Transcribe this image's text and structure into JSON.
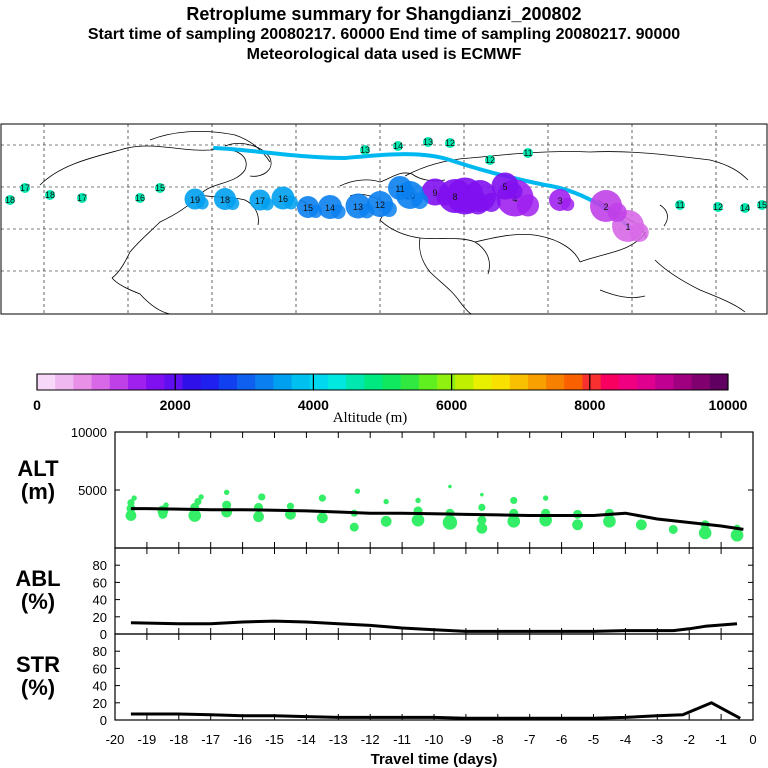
{
  "header": {
    "title": "Retroplume summary for Shangdianzi_200802",
    "line1": "Start time of sampling 20080217. 60000     End time of sampling 20080217. 90000",
    "line2": "Meteorological data used is ECMWF"
  },
  "colors": {
    "track": "#00b8f0",
    "scatter": "#33ee66",
    "line": "#000000"
  },
  "chart_data": [
    {
      "type": "map",
      "description_tag": "retroplume-map",
      "plume_labels": [
        {
          "day": "1"
        },
        {
          "day": "2"
        },
        {
          "day": "3"
        },
        {
          "day": "4"
        },
        {
          "day": "5"
        },
        {
          "day": "6"
        },
        {
          "day": "7"
        },
        {
          "day": "8"
        },
        {
          "day": "9"
        },
        {
          "day": "10"
        },
        {
          "day": "11"
        },
        {
          "day": "12"
        },
        {
          "day": "13"
        },
        {
          "day": "14"
        },
        {
          "day": "15"
        },
        {
          "day": "16"
        },
        {
          "day": "17"
        },
        {
          "day": "18"
        },
        {
          "day": "19"
        }
      ]
    },
    {
      "type": "colorbar",
      "title": "Altitude (m)",
      "range": [
        0,
        10000
      ],
      "tick_labels": [
        "0",
        "2000",
        "4000",
        "6000",
        "8000",
        "10000"
      ],
      "colors": [
        "#f8d8f8",
        "#f0b8f0",
        "#e890e8",
        "#d868e8",
        "#c040e8",
        "#a020f0",
        "#8010f0",
        "#6010f0",
        "#3010e8",
        "#2020f0",
        "#1040f0",
        "#1060f0",
        "#0a80f0",
        "#00a0f0",
        "#00c0f0",
        "#00d8f0",
        "#00e8e0",
        "#00e8b0",
        "#00e880",
        "#10e860",
        "#30e840",
        "#60f020",
        "#90f010",
        "#c0f000",
        "#e8f000",
        "#f8e000",
        "#f8c000",
        "#f8a000",
        "#f88000",
        "#f86000",
        "#f83030",
        "#f80060",
        "#f00080",
        "#e00090",
        "#c00090",
        "#a00080",
        "#800070",
        "#600060"
      ]
    },
    {
      "type": "line+scatter",
      "panel": "ALT",
      "ylabel_line1": "ALT",
      "ylabel_line2": "(m)",
      "ylim": [
        0,
        10000
      ],
      "ytick_labels": [
        "5000",
        "10000"
      ],
      "ytick_values": [
        5000,
        10000
      ],
      "line_x": [
        -19.5,
        -19,
        -18,
        -17,
        -16,
        -15,
        -14,
        -13,
        -12,
        -11,
        -10,
        -9,
        -8,
        -7,
        -6,
        -5,
        -4,
        -3,
        -2,
        -1,
        -0.3
      ],
      "line_y": [
        3400,
        3400,
        3350,
        3300,
        3300,
        3250,
        3200,
        3100,
        3000,
        3000,
        2950,
        2900,
        2850,
        2800,
        2800,
        2800,
        3000,
        2500,
        2200,
        1900,
        1600
      ],
      "scatter_x": [
        -19.5,
        -19.5,
        -19.5,
        -19.4,
        -18.5,
        -18.5,
        -18.4,
        -17.5,
        -17.5,
        -17.4,
        -17.3,
        -16.5,
        -16.5,
        -16.5,
        -15.5,
        -15.5,
        -15.4,
        -14.5,
        -14.5,
        -13.5,
        -13.5,
        -12.5,
        -12.5,
        -12.4,
        -11.5,
        -11.5,
        -10.5,
        -10.5,
        -10.5,
        -9.5,
        -9.5,
        -9.5,
        -8.5,
        -8.5,
        -8.5,
        -8.5,
        -7.5,
        -7.5,
        -7.5,
        -6.5,
        -6.5,
        -6.5,
        -5.5,
        -5.5,
        -4.5,
        -4.5,
        -3.5,
        -2.5,
        -1.5,
        -1.5,
        -0.5,
        -0.5
      ],
      "scatter_y": [
        2800,
        3400,
        3900,
        4300,
        3200,
        2900,
        3700,
        2800,
        3500,
        4000,
        4400,
        3100,
        3700,
        4800,
        2700,
        3500,
        4400,
        2900,
        3600,
        2600,
        4300,
        1800,
        3000,
        4900,
        2300,
        4000,
        2400,
        3200,
        4100,
        2200,
        3000,
        5300,
        1700,
        2400,
        3500,
        4600,
        2300,
        3000,
        4100,
        2400,
        3000,
        4300,
        2000,
        2900,
        2300,
        3000,
        2000,
        1600,
        1300,
        2000,
        1100,
        1700
      ],
      "scatter_size": [
        6,
        5,
        4,
        3,
        6,
        5,
        3,
        7,
        5,
        4,
        3,
        6,
        5,
        3,
        6,
        5,
        4,
        6,
        4,
        6,
        4,
        5,
        4,
        3,
        6,
        3,
        7,
        5,
        3,
        8,
        5,
        2,
        6,
        5,
        4,
        2,
        7,
        5,
        4,
        7,
        5,
        3,
        6,
        5,
        7,
        5,
        6,
        5,
        7,
        5,
        7,
        4
      ]
    },
    {
      "type": "line",
      "panel": "ABL",
      "ylabel_line1": "ABL",
      "ylabel_line2": "(%)",
      "ylim": [
        0,
        100
      ],
      "ytick_labels": [
        "0",
        "20",
        "40",
        "60",
        "80"
      ],
      "ytick_values": [
        0,
        20,
        40,
        60,
        80
      ],
      "x": [
        -19.5,
        -18,
        -17,
        -16,
        -15,
        -14,
        -13,
        -12,
        -11,
        -10,
        -9,
        -8,
        -7,
        -6,
        -5,
        -4,
        -3,
        -2.5,
        -2,
        -1.5,
        -0.5
      ],
      "y": [
        13,
        12,
        12,
        14,
        15,
        14,
        12,
        10,
        7,
        5,
        3,
        3,
        3,
        3,
        3,
        4,
        4,
        4,
        6,
        9,
        12
      ]
    },
    {
      "type": "line",
      "panel": "STR",
      "ylabel_line1": "STR",
      "ylabel_line2": "(%)",
      "ylim": [
        0,
        100
      ],
      "ytick_labels": [
        "0",
        "20",
        "40",
        "60",
        "80"
      ],
      "ytick_values": [
        0,
        20,
        40,
        60,
        80
      ],
      "xlabel": "Travel time (days)",
      "xlim": [
        -20,
        0
      ],
      "xtick_labels": [
        "-20",
        "-19",
        "-18",
        "-17",
        "-16",
        "-15",
        "-14",
        "-13",
        "-12",
        "-11",
        "-10",
        "-9",
        "-8",
        "-7",
        "-6",
        "-5",
        "-4",
        "-3",
        "-2",
        "-1",
        "0"
      ],
      "xtick_values": [
        -20,
        -19,
        -18,
        -17,
        -16,
        -15,
        -14,
        -13,
        -12,
        -11,
        -10,
        -9,
        -8,
        -7,
        -6,
        -5,
        -4,
        -3,
        -2,
        -1,
        0
      ],
      "x": [
        -19.5,
        -18,
        -17,
        -16,
        -15,
        -14,
        -13,
        -12,
        -11,
        -10,
        -9,
        -8,
        -7,
        -6,
        -5,
        -4,
        -3,
        -2.2,
        -1.3,
        -0.4
      ],
      "y": [
        7,
        7,
        6,
        5,
        5,
        4,
        3,
        3,
        3,
        3,
        2,
        2,
        2,
        2,
        2,
        3,
        5,
        6,
        20,
        2
      ]
    }
  ]
}
